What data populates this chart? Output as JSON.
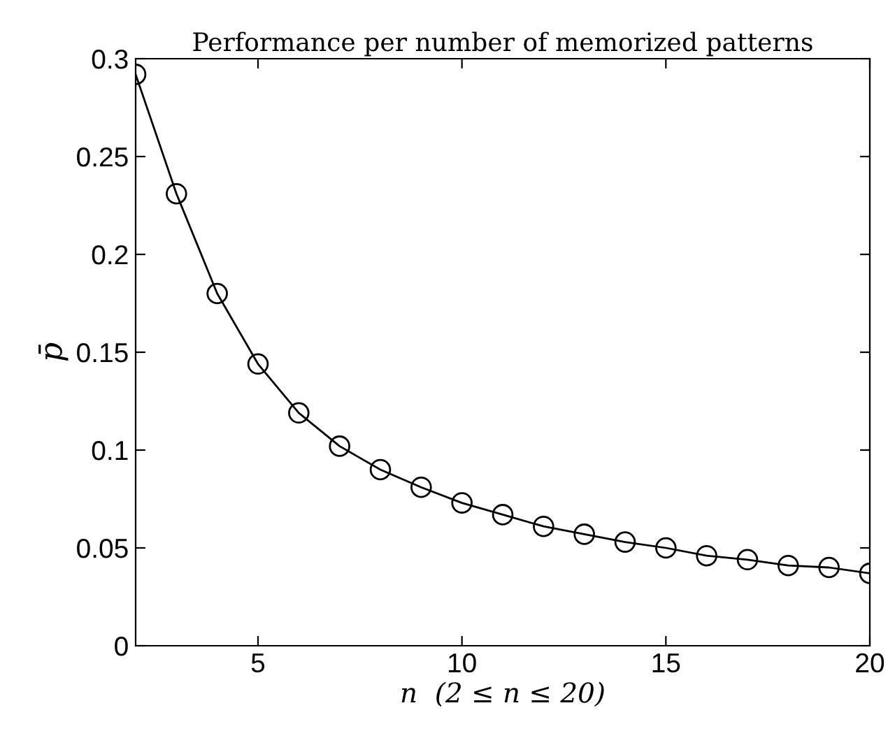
{
  "chart_data": {
    "type": "line",
    "title": "Performance per number of memorized patterns",
    "xlabel": "n  (2 ≤ n ≤ 20)",
    "ylabel": "p̄",
    "x": [
      2,
      3,
      4,
      5,
      6,
      7,
      8,
      9,
      10,
      11,
      12,
      13,
      14,
      15,
      16,
      17,
      18,
      19,
      20
    ],
    "series": [
      {
        "color": "#000000",
        "values": [
          0.292,
          0.231,
          0.18,
          0.144,
          0.119,
          0.102,
          0.09,
          0.081,
          0.073,
          0.067,
          0.061,
          0.057,
          0.053,
          0.05,
          0.046,
          0.044,
          0.041,
          0.04,
          0.037
        ]
      }
    ],
    "xlim": [
      2,
      20
    ],
    "xticks": [
      5,
      10,
      15,
      20
    ],
    "ylim": [
      0,
      0.3
    ],
    "yticks": [
      0,
      0.05,
      0.1,
      0.15,
      0.2,
      0.25,
      0.3
    ],
    "marker": "circle",
    "line_style": "solid",
    "grid": false,
    "legend": false
  }
}
